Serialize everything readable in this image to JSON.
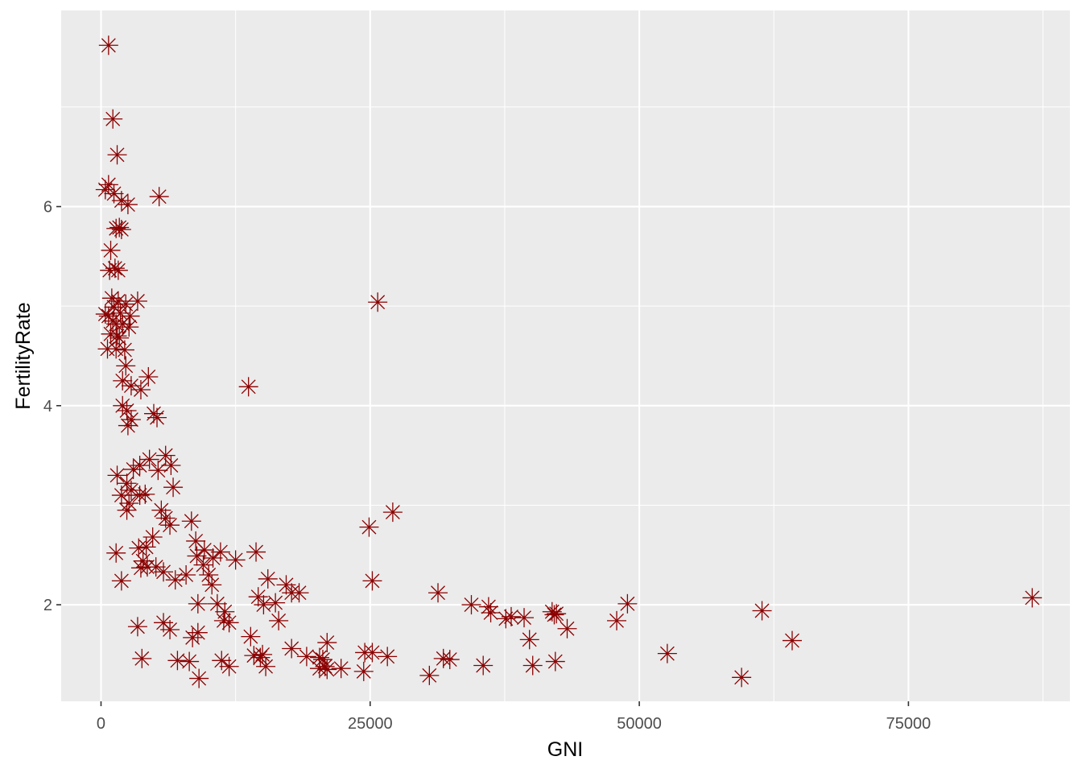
{
  "chart_data": {
    "type": "scatter",
    "title": "",
    "xlabel": "GNI",
    "ylabel": "FertilityRate",
    "xlim": [
      -3700,
      90000
    ],
    "ylim": [
      1.03,
      7.97
    ],
    "x_ticks": [
      0,
      25000,
      50000,
      75000
    ],
    "x_tick_labels": [
      "0",
      "25000",
      "50000",
      "75000"
    ],
    "y_ticks": [
      2,
      4,
      6
    ],
    "y_tick_labels": [
      "2",
      "4",
      "6"
    ],
    "grid": true,
    "legend": "none",
    "marker": "asterisk",
    "colors": {
      "marker": "#8b0000",
      "panel_background": "#ebebeb",
      "grid": "#ffffff",
      "tick_label": "#4d4d4d",
      "axis_title": "#000000"
    },
    "points": [
      [
        700,
        7.62
      ],
      [
        1100,
        6.88
      ],
      [
        1500,
        6.52
      ],
      [
        700,
        6.22
      ],
      [
        400,
        6.17
      ],
      [
        1200,
        6.13
      ],
      [
        1900,
        6.06
      ],
      [
        2500,
        6.02
      ],
      [
        5400,
        6.1
      ],
      [
        1400,
        5.78
      ],
      [
        1700,
        5.79
      ],
      [
        1900,
        5.77
      ],
      [
        900,
        5.56
      ],
      [
        1300,
        5.38
      ],
      [
        800,
        5.36
      ],
      [
        1600,
        5.36
      ],
      [
        1000,
        5.08
      ],
      [
        1600,
        5.05
      ],
      [
        2300,
        5.02
      ],
      [
        3400,
        5.05
      ],
      [
        1200,
        4.99
      ],
      [
        400,
        4.92
      ],
      [
        700,
        4.9
      ],
      [
        1800,
        4.93
      ],
      [
        2700,
        4.9
      ],
      [
        1100,
        4.85
      ],
      [
        1400,
        4.82
      ],
      [
        2000,
        4.82
      ],
      [
        2600,
        4.79
      ],
      [
        900,
        4.72
      ],
      [
        1500,
        4.7
      ],
      [
        1700,
        4.68
      ],
      [
        600,
        4.57
      ],
      [
        1400,
        4.57
      ],
      [
        2200,
        4.56
      ],
      [
        2300,
        4.4
      ],
      [
        4400,
        4.29
      ],
      [
        2000,
        4.25
      ],
      [
        2800,
        4.2
      ],
      [
        3700,
        4.16
      ],
      [
        2000,
        4.0
      ],
      [
        2400,
        3.95
      ],
      [
        4900,
        3.92
      ],
      [
        5200,
        3.88
      ],
      [
        2800,
        3.86
      ],
      [
        2500,
        3.8
      ],
      [
        6000,
        3.5
      ],
      [
        4500,
        3.46
      ],
      [
        3600,
        3.4
      ],
      [
        6500,
        3.4
      ],
      [
        5300,
        3.35
      ],
      [
        3000,
        3.36
      ],
      [
        1500,
        3.3
      ],
      [
        2400,
        3.22
      ],
      [
        6700,
        3.18
      ],
      [
        2800,
        3.15
      ],
      [
        1900,
        3.1
      ],
      [
        3600,
        3.1
      ],
      [
        4100,
        3.11
      ],
      [
        2600,
        3.02
      ],
      [
        2400,
        2.95
      ],
      [
        5600,
        2.95
      ],
      [
        6000,
        2.87
      ],
      [
        8400,
        2.84
      ],
      [
        6400,
        2.8
      ],
      [
        4800,
        2.68
      ],
      [
        8800,
        2.64
      ],
      [
        4200,
        2.58
      ],
      [
        3500,
        2.57
      ],
      [
        9600,
        2.55
      ],
      [
        11100,
        2.53
      ],
      [
        14400,
        2.53
      ],
      [
        1400,
        2.52
      ],
      [
        8900,
        2.49
      ],
      [
        10400,
        2.47
      ],
      [
        12500,
        2.45
      ],
      [
        3900,
        2.44
      ],
      [
        9500,
        2.4
      ],
      [
        4300,
        2.38
      ],
      [
        5100,
        2.38
      ],
      [
        3700,
        2.37
      ],
      [
        5800,
        2.33
      ],
      [
        7900,
        2.3
      ],
      [
        10000,
        2.3
      ],
      [
        6900,
        2.25
      ],
      [
        1900,
        2.24
      ],
      [
        10300,
        2.2
      ],
      [
        15500,
        2.26
      ],
      [
        17200,
        2.2
      ],
      [
        17700,
        2.12
      ],
      [
        18400,
        2.12
      ],
      [
        14600,
        2.08
      ],
      [
        15100,
        2.0
      ],
      [
        9000,
        2.01
      ],
      [
        10800,
        2.01
      ],
      [
        16200,
        2.02
      ],
      [
        11500,
        1.93
      ],
      [
        11400,
        1.84
      ],
      [
        11900,
        1.82
      ],
      [
        16500,
        1.84
      ],
      [
        5800,
        1.82
      ],
      [
        3400,
        1.78
      ],
      [
        6400,
        1.75
      ],
      [
        9000,
        1.72
      ],
      [
        8500,
        1.67
      ],
      [
        13900,
        1.68
      ],
      [
        17700,
        1.56
      ],
      [
        15000,
        1.5
      ],
      [
        14200,
        1.49
      ],
      [
        14800,
        1.47
      ],
      [
        19100,
        1.48
      ],
      [
        20300,
        1.47
      ],
      [
        20600,
        1.45
      ],
      [
        3800,
        1.46
      ],
      [
        7100,
        1.44
      ],
      [
        8200,
        1.43
      ],
      [
        11200,
        1.44
      ],
      [
        11900,
        1.38
      ],
      [
        15300,
        1.38
      ],
      [
        20300,
        1.36
      ],
      [
        20800,
        1.38
      ],
      [
        21000,
        1.35
      ],
      [
        22300,
        1.36
      ],
      [
        9100,
        1.26
      ],
      [
        21000,
        1.62
      ],
      [
        13700,
        4.19
      ],
      [
        25700,
        5.04
      ],
      [
        24900,
        2.78
      ],
      [
        27100,
        2.93
      ],
      [
        25200,
        2.24
      ],
      [
        31300,
        2.12
      ],
      [
        24500,
        1.52
      ],
      [
        25200,
        1.52
      ],
      [
        26600,
        1.48
      ],
      [
        24400,
        1.33
      ],
      [
        30500,
        1.29
      ],
      [
        31800,
        1.46
      ],
      [
        32400,
        1.45
      ],
      [
        35500,
        1.39
      ],
      [
        34400,
        2.0
      ],
      [
        36000,
        1.98
      ],
      [
        36200,
        1.92
      ],
      [
        38100,
        1.88
      ],
      [
        37600,
        1.86
      ],
      [
        39300,
        1.87
      ],
      [
        39800,
        1.65
      ],
      [
        40100,
        1.39
      ],
      [
        41900,
        1.93
      ],
      [
        42300,
        1.91
      ],
      [
        42100,
        1.9
      ],
      [
        43300,
        1.76
      ],
      [
        42200,
        1.43
      ],
      [
        47900,
        1.84
      ],
      [
        48900,
        2.01
      ],
      [
        52600,
        1.51
      ],
      [
        59500,
        1.27
      ],
      [
        61400,
        1.94
      ],
      [
        64200,
        1.64
      ],
      [
        86500,
        2.07
      ]
    ]
  }
}
